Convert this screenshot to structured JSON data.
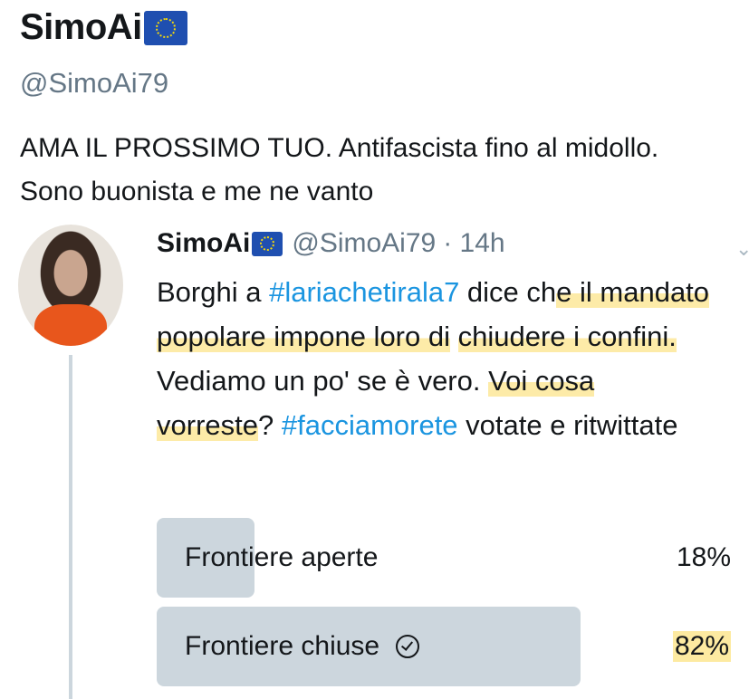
{
  "profile": {
    "name": "SimoAi",
    "handle": "@SimoAi79",
    "bio": "AMA IL PROSSIMO TUO. Antifascista fino al midollo. Sono buonista e me ne vanto"
  },
  "tweet": {
    "name": "SimoAi",
    "handle": "@SimoAi79",
    "time": "· 14h",
    "segments": [
      "Borghi a ",
      "#lariachetirala7",
      " dice ch",
      "e il mandato popolare impone loro di",
      " ",
      "chiudere i confini.",
      " Vediamo un po' se è vero. ",
      "Voi cosa vorreste",
      "? ",
      "#facciamorete",
      " votate e ritwittate"
    ]
  },
  "poll": {
    "options": [
      {
        "label": "Frontiere aperte",
        "percent": "18%",
        "value": 18,
        "selected": false
      },
      {
        "label": "Frontiere chiuse",
        "percent": "82%",
        "value": 82,
        "selected": true
      }
    ],
    "bar_color": "#ccd6dd",
    "highlight_color": "#fcde6e",
    "link_color": "#1b95e0"
  }
}
